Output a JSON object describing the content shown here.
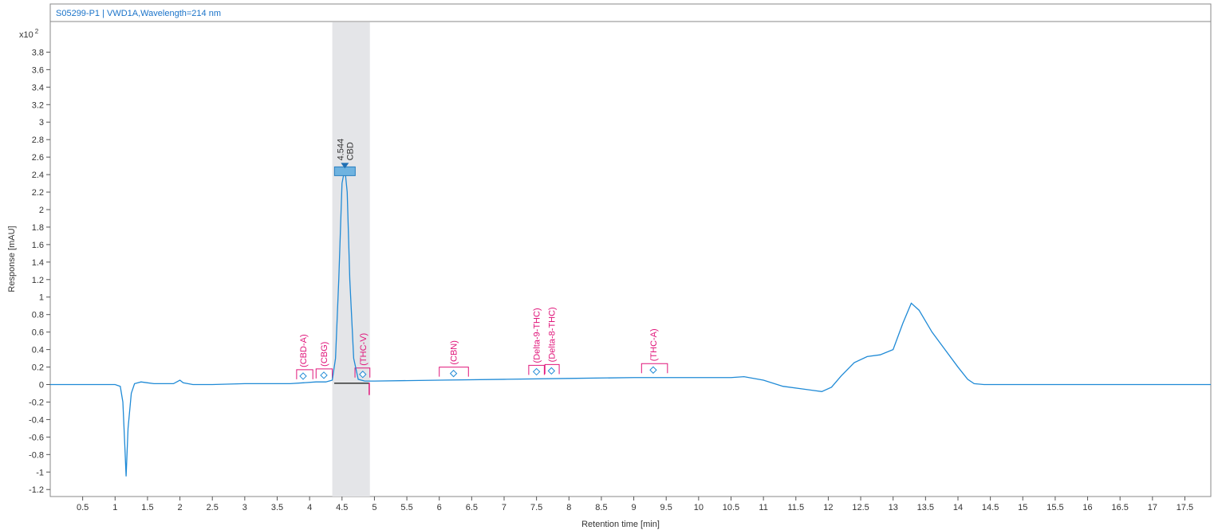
{
  "chart_data": {
    "type": "line",
    "title": "S05299-P1 | VWD1A,Wavelength=214 nm",
    "xlabel": "Retention time [min]",
    "ylabel": "Response [mAU]",
    "y_multiplier_label": "x10",
    "y_multiplier_exp": "2",
    "xlim": [
      0,
      17.9
    ],
    "ylim": [
      -1.28,
      4.15
    ],
    "x_ticks": [
      "0.5",
      "1",
      "1.5",
      "2",
      "2.5",
      "3",
      "3.5",
      "4",
      "4.5",
      "5",
      "5.5",
      "6",
      "6.5",
      "7",
      "7.5",
      "8",
      "8.5",
      "9",
      "9.5",
      "10",
      "10.5",
      "11",
      "11.5",
      "12",
      "12.5",
      "13",
      "13.5",
      "14",
      "14.5",
      "15",
      "15.5",
      "16",
      "16.5",
      "17",
      "17.5"
    ],
    "y_ticks": [
      "3.8",
      "3.6",
      "3.4",
      "3.2",
      "3",
      "2.8",
      "2.6",
      "2.4",
      "2.2",
      "2",
      "1.8",
      "1.6",
      "1.4",
      "1.2",
      "1",
      "0.8",
      "0.6",
      "0.4",
      "0.2",
      "0",
      "-0.2",
      "-0.4",
      "-0.6",
      "-0.8",
      "-1",
      "-1.2"
    ],
    "highlight_window": [
      4.35,
      4.93
    ],
    "series": [
      {
        "color": "#1f8ad6",
        "points": [
          [
            0.0,
            0.0
          ],
          [
            1.0,
            0.0
          ],
          [
            1.08,
            -0.02
          ],
          [
            1.12,
            -0.2
          ],
          [
            1.15,
            -0.7
          ],
          [
            1.17,
            -1.05
          ],
          [
            1.2,
            -0.5
          ],
          [
            1.25,
            -0.1
          ],
          [
            1.3,
            0.01
          ],
          [
            1.4,
            0.03
          ],
          [
            1.5,
            0.02
          ],
          [
            1.6,
            0.01
          ],
          [
            1.9,
            0.01
          ],
          [
            2.0,
            0.05
          ],
          [
            2.05,
            0.02
          ],
          [
            2.2,
            0.0
          ],
          [
            2.5,
            0.0
          ],
          [
            3.0,
            0.01
          ],
          [
            3.7,
            0.01
          ],
          [
            3.9,
            0.02
          ],
          [
            4.1,
            0.03
          ],
          [
            4.25,
            0.03
          ],
          [
            4.35,
            0.05
          ],
          [
            4.4,
            0.3
          ],
          [
            4.45,
            1.2
          ],
          [
            4.5,
            2.3
          ],
          [
            4.544,
            2.47
          ],
          [
            4.58,
            2.2
          ],
          [
            4.62,
            1.2
          ],
          [
            4.68,
            0.3
          ],
          [
            4.75,
            0.06
          ],
          [
            4.85,
            0.04
          ],
          [
            5.0,
            0.04
          ],
          [
            6.0,
            0.05
          ],
          [
            7.0,
            0.06
          ],
          [
            8.0,
            0.07
          ],
          [
            9.0,
            0.08
          ],
          [
            10.0,
            0.08
          ],
          [
            10.5,
            0.08
          ],
          [
            10.7,
            0.09
          ],
          [
            11.0,
            0.05
          ],
          [
            11.3,
            -0.02
          ],
          [
            11.6,
            -0.05
          ],
          [
            11.9,
            -0.08
          ],
          [
            12.05,
            -0.03
          ],
          [
            12.2,
            0.1
          ],
          [
            12.4,
            0.25
          ],
          [
            12.6,
            0.32
          ],
          [
            12.8,
            0.34
          ],
          [
            13.0,
            0.4
          ],
          [
            13.15,
            0.7
          ],
          [
            13.28,
            0.93
          ],
          [
            13.4,
            0.85
          ],
          [
            13.6,
            0.6
          ],
          [
            13.8,
            0.4
          ],
          [
            14.0,
            0.2
          ],
          [
            14.15,
            0.06
          ],
          [
            14.25,
            0.01
          ],
          [
            14.4,
            0.0
          ],
          [
            17.9,
            0.0
          ]
        ]
      }
    ],
    "peaks": [
      {
        "rt": "4.544",
        "name": "CBD",
        "x": 4.544,
        "y": 2.47
      }
    ],
    "compound_windows": [
      {
        "name": "(CBD-A)",
        "x": 3.9,
        "x0": 3.8,
        "x1": 4.05,
        "y": 0.06
      },
      {
        "name": "(CBG)",
        "x": 4.22,
        "x0": 4.1,
        "x1": 4.35,
        "y": 0.07
      },
      {
        "name": "(THC-V)",
        "x": 4.82,
        "x0": 4.7,
        "x1": 4.93,
        "y": 0.08
      },
      {
        "name": "(CBN)",
        "x": 6.22,
        "x0": 6.0,
        "x1": 6.45,
        "y": 0.09
      },
      {
        "name": "(Delta-9-THC)",
        "x": 7.5,
        "x0": 7.38,
        "x1": 7.62,
        "y": 0.11
      },
      {
        "name": "(Delta-8-THC)",
        "x": 7.73,
        "x0": 7.63,
        "x1": 7.85,
        "y": 0.12
      },
      {
        "name": "(THC-A)",
        "x": 9.3,
        "x0": 9.12,
        "x1": 9.52,
        "y": 0.13
      }
    ],
    "grid": false,
    "legend": "none"
  }
}
